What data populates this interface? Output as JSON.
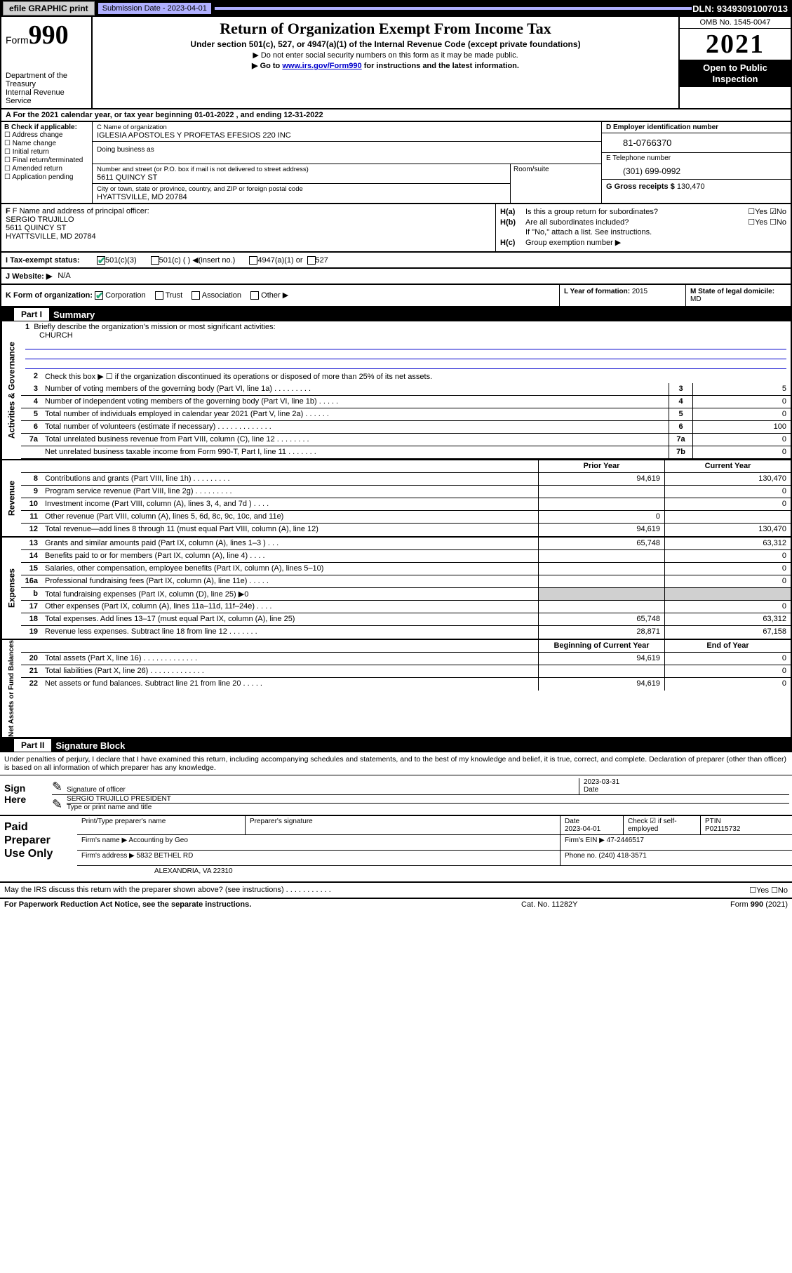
{
  "topbar": {
    "efile": "efile GRAPHIC print",
    "sub_label": "Submission Date - 2023-04-01",
    "dln": "DLN: 93493091007013"
  },
  "header": {
    "form_word": "Form",
    "form_num": "990",
    "dept": "Department of the Treasury",
    "irs": "Internal Revenue Service",
    "title": "Return of Organization Exempt From Income Tax",
    "sub1": "Under section 501(c), 527, or 4947(a)(1) of the Internal Revenue Code (except private foundations)",
    "sub2": "▶ Do not enter social security numbers on this form as it may be made public.",
    "sub3_pre": "▶ Go to ",
    "sub3_link": "www.irs.gov/Form990",
    "sub3_post": " for instructions and the latest information.",
    "omb": "OMB No. 1545-0047",
    "year": "2021",
    "open": "Open to Public Inspection"
  },
  "rowA": "A For the 2021 calendar year, or tax year beginning 01-01-2022   , and ending 12-31-2022",
  "boxB": {
    "label": "B Check if applicable:",
    "opts": [
      "Address change",
      "Name change",
      "Initial return",
      "Final return/terminated",
      "Amended return",
      "Application pending"
    ]
  },
  "boxC": {
    "lbl_name": "C Name of organization",
    "org_name": "IGLESIA APOSTOLES Y PROFETAS EFESIOS 220 INC",
    "dba_lbl": "Doing business as",
    "street_lbl": "Number and street (or P.O. box if mail is not delivered to street address)",
    "room_lbl": "Room/suite",
    "street": "5611 QUINCY ST",
    "city_lbl": "City or town, state or province, country, and ZIP or foreign postal code",
    "city": "HYATTSVILLE, MD  20784"
  },
  "boxD": {
    "lbl": "D Employer identification number",
    "val": "81-0766370"
  },
  "boxE": {
    "lbl": "E Telephone number",
    "val": "(301) 699-0992"
  },
  "boxG": {
    "lbl": "G Gross receipts $",
    "val": "130,470"
  },
  "boxF": {
    "lbl": "F Name and address of principal officer:",
    "name": "SERGIO TRUJILLO",
    "addr1": "5611 QUINCY ST",
    "addr2": "HYATTSVILLE, MD  20784"
  },
  "boxH": {
    "a_lbl": "H(a)",
    "a_txt": "Is this a group return for subordinates?",
    "a_chk": "☐Yes ☑No",
    "b_lbl": "H(b)",
    "b_txt": "Are all subordinates included?",
    "b_chk": "☐Yes ☐No",
    "b_note": "If \"No,\" attach a list. See instructions.",
    "c_lbl": "H(c)",
    "c_txt": "Group exemption number ▶"
  },
  "rowI": {
    "lbl": "I   Tax-exempt status:",
    "o1": "501(c)(3)",
    "o2": "501(c) (  ) ◀(insert no.)",
    "o3": "4947(a)(1) or",
    "o4": "527"
  },
  "rowJ": {
    "lbl": "J   Website: ▶",
    "val": "N/A"
  },
  "rowK": {
    "lbl": "K Form of organization:",
    "o1": "Corporation",
    "o2": "Trust",
    "o3": "Association",
    "o4": "Other ▶"
  },
  "rowL": {
    "lbl": "L Year of formation:",
    "val": "2015"
  },
  "rowM": {
    "lbl": "M State of legal domicile:",
    "val": "MD"
  },
  "part1": {
    "num": "Part I",
    "title": "Summary"
  },
  "gov": {
    "side": "Activities & Governance",
    "l1": "Briefly describe the organization's mission or most significant activities:",
    "l1val": "CHURCH",
    "l2": "Check this box ▶ ☐  if the organization discontinued its operations or disposed of more than 25% of its net assets.",
    "lines": [
      {
        "n": "3",
        "t": "Number of voting members of the governing body (Part VI, line 1a)  .   .   .   .   .   .   .   .   .",
        "b": "3",
        "v": "5"
      },
      {
        "n": "4",
        "t": "Number of independent voting members of the governing body (Part VI, line 1b)   .   .   .   .   .",
        "b": "4",
        "v": "0"
      },
      {
        "n": "5",
        "t": "Total number of individuals employed in calendar year 2021 (Part V, line 2a)   .   .   .   .   .   .",
        "b": "5",
        "v": "0"
      },
      {
        "n": "6",
        "t": "Total number of volunteers (estimate if necessary)   .   .   .   .   .   .   .   .   .   .   .   .   .",
        "b": "6",
        "v": "100"
      },
      {
        "n": "7a",
        "t": "Total unrelated business revenue from Part VIII, column (C), line 12   .   .   .   .   .   .   .   .",
        "b": "7a",
        "v": "0"
      },
      {
        "n": "",
        "t": "Net unrelated business taxable income from Form 990-T, Part I, line 11   .   .   .   .   .   .   .",
        "b": "7b",
        "v": "0"
      }
    ]
  },
  "rev": {
    "side": "Revenue",
    "hdr_py": "Prior Year",
    "hdr_cy": "Current Year",
    "lines": [
      {
        "n": "8",
        "t": "Contributions and grants (Part VIII, line 1h)   .   .   .   .   .   .   .   .   .",
        "py": "94,619",
        "cy": "130,470"
      },
      {
        "n": "9",
        "t": "Program service revenue (Part VIII, line 2g)   .   .   .   .   .   .   .   .   .",
        "py": "",
        "cy": "0"
      },
      {
        "n": "10",
        "t": "Investment income (Part VIII, column (A), lines 3, 4, and 7d )   .   .   .   .",
        "py": "",
        "cy": "0"
      },
      {
        "n": "11",
        "t": "Other revenue (Part VIII, column (A), lines 5, 6d, 8c, 9c, 10c, and 11e)",
        "py": "0",
        "cy": ""
      },
      {
        "n": "12",
        "t": "Total revenue—add lines 8 through 11 (must equal Part VIII, column (A), line 12)",
        "py": "94,619",
        "cy": "130,470"
      }
    ]
  },
  "exp": {
    "side": "Expenses",
    "lines": [
      {
        "n": "13",
        "t": "Grants and similar amounts paid (Part IX, column (A), lines 1–3 )   .   .   .",
        "py": "65,748",
        "cy": "63,312"
      },
      {
        "n": "14",
        "t": "Benefits paid to or for members (Part IX, column (A), line 4)   .   .   .   .",
        "py": "",
        "cy": "0"
      },
      {
        "n": "15",
        "t": "Salaries, other compensation, employee benefits (Part IX, column (A), lines 5–10)",
        "py": "",
        "cy": "0"
      },
      {
        "n": "16a",
        "t": "Professional fundraising fees (Part IX, column (A), line 11e)   .   .   .   .   .",
        "py": "",
        "cy": "0"
      },
      {
        "n": "b",
        "t": "Total fundraising expenses (Part IX, column (D), line 25) ▶0",
        "py": "grey",
        "cy": "grey"
      },
      {
        "n": "17",
        "t": "Other expenses (Part IX, column (A), lines 11a–11d, 11f–24e)   .   .   .   .",
        "py": "",
        "cy": "0"
      },
      {
        "n": "18",
        "t": "Total expenses. Add lines 13–17 (must equal Part IX, column (A), line 25)",
        "py": "65,748",
        "cy": "63,312"
      },
      {
        "n": "19",
        "t": "Revenue less expenses. Subtract line 18 from line 12   .   .   .   .   .   .   .",
        "py": "28,871",
        "cy": "67,158"
      }
    ]
  },
  "net": {
    "side": "Net Assets or Fund Balances",
    "hdr_py": "Beginning of Current Year",
    "hdr_cy": "End of Year",
    "lines": [
      {
        "n": "20",
        "t": "Total assets (Part X, line 16)   .   .   .   .   .   .   .   .   .   .   .   .   .",
        "py": "94,619",
        "cy": "0"
      },
      {
        "n": "21",
        "t": "Total liabilities (Part X, line 26)   .   .   .   .   .   .   .   .   .   .   .   .   .",
        "py": "",
        "cy": "0"
      },
      {
        "n": "22",
        "t": "Net assets or fund balances. Subtract line 21 from line 20   .   .   .   .   .",
        "py": "94,619",
        "cy": "0"
      }
    ]
  },
  "part2": {
    "num": "Part II",
    "title": "Signature Block"
  },
  "decl": "Under penalties of perjury, I declare that I have examined this return, including accompanying schedules and statements, and to the best of my knowledge and belief, it is true, correct, and complete. Declaration of preparer (other than officer) is based on all information of which preparer has any knowledge.",
  "sign": {
    "here": "Sign Here",
    "sig_lbl": "Signature of officer",
    "date_lbl": "Date",
    "date_val": "2023-03-31",
    "name": "SERGIO TRUJILLO  PRESIDENT",
    "name_lbl": "Type or print name and title"
  },
  "prep": {
    "title": "Paid Preparer Use Only",
    "h1": "Print/Type preparer's name",
    "h2": "Preparer's signature",
    "h3": "Date",
    "h3v": "2023-04-01",
    "h4": "Check ☑ if self-employed",
    "h5": "PTIN",
    "h5v": "P02115732",
    "firm_lbl": "Firm's name   ▶",
    "firm": "Accounting by Geo",
    "ein_lbl": "Firm's EIN ▶",
    "ein": "47-2446517",
    "addr_lbl": "Firm's address ▶",
    "addr1": "5832 BETHEL RD",
    "addr2": "ALEXANDRIA, VA  22310",
    "ph_lbl": "Phone no.",
    "ph": "(240) 418-3571"
  },
  "discuss": {
    "txt": "May the IRS discuss this return with the preparer shown above? (see instructions)   .   .   .   .   .   .   .   .   .   .   .",
    "chk": "☐Yes   ☐No"
  },
  "footer": {
    "f1": "For Paperwork Reduction Act Notice, see the separate instructions.",
    "f2": "Cat. No. 11282Y",
    "f3": "Form 990 (2021)"
  }
}
